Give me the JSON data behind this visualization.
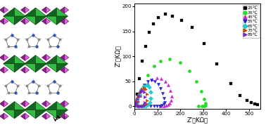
{
  "title": "",
  "xlabel": "Z’（KΩ）",
  "ylabel": "Z″（KΩ）",
  "xlim": [
    0,
    550
  ],
  "ylim": [
    -5,
    205
  ],
  "yticks": [
    0,
    50,
    100,
    150,
    200
  ],
  "xticks": [
    0,
    100,
    200,
    300,
    400,
    500
  ],
  "legend_labels": [
    "25℃",
    "35℃",
    "45℃",
    "55℃",
    "65℃",
    "75℃",
    "85℃"
  ],
  "legend_colors": [
    "black",
    "#22dd22",
    "#cc22cc",
    "#2222cc",
    "#22cccc",
    "#cc4400",
    "#7722cc"
  ],
  "legend_markers": [
    "s",
    "o",
    "^",
    "v",
    "D",
    ">",
    ">"
  ],
  "series_25": {
    "color": "black",
    "marker": "s",
    "x": [
      12,
      22,
      35,
      50,
      65,
      82,
      105,
      135,
      165,
      205,
      250,
      305,
      360,
      420,
      460,
      490,
      510,
      525,
      535
    ],
    "y": [
      25,
      55,
      90,
      120,
      148,
      165,
      178,
      185,
      180,
      172,
      158,
      125,
      85,
      45,
      22,
      12,
      7,
      4,
      3
    ]
  },
  "series_35": {
    "color": "#22dd22",
    "marker": "o",
    "x": [
      12,
      25,
      40,
      60,
      85,
      115,
      155,
      200,
      240,
      270,
      290,
      305,
      310,
      310,
      305,
      295,
      280
    ],
    "y": [
      8,
      22,
      40,
      62,
      80,
      90,
      95,
      88,
      70,
      50,
      30,
      15,
      6,
      2,
      1,
      1,
      1
    ]
  },
  "series_45": {
    "color": "#cc22cc",
    "marker": "^",
    "x": [
      8,
      15,
      25,
      40,
      58,
      78,
      98,
      118,
      135,
      148,
      158,
      162,
      160,
      155,
      148,
      138,
      128,
      115
    ],
    "y": [
      5,
      12,
      22,
      35,
      46,
      54,
      57,
      55,
      50,
      42,
      32,
      20,
      12,
      6,
      3,
      2,
      1,
      1
    ]
  },
  "series_55": {
    "color": "#2222cc",
    "marker": "v",
    "x": [
      5,
      10,
      18,
      28,
      42,
      58,
      74,
      90,
      104,
      115,
      124,
      130,
      132,
      128,
      120,
      110,
      98,
      85,
      72
    ],
    "y": [
      3,
      8,
      18,
      30,
      42,
      50,
      52,
      50,
      44,
      36,
      26,
      16,
      8,
      4,
      2,
      1,
      1,
      1,
      1
    ]
  },
  "series_65": {
    "color": "#22cccc",
    "marker": "D",
    "x": [
      4,
      8,
      14,
      22,
      32,
      44,
      55,
      64,
      70,
      72,
      68,
      60,
      50,
      40,
      30,
      20
    ],
    "y": [
      2,
      6,
      14,
      24,
      34,
      40,
      42,
      38,
      28,
      16,
      7,
      3,
      1,
      1,
      1,
      1
    ]
  },
  "series_75": {
    "color": "#cc4400",
    "marker": ">",
    "x": [
      3,
      6,
      10,
      16,
      24,
      33,
      42,
      50,
      55,
      56,
      52,
      44,
      36,
      27,
      18
    ],
    "y": [
      2,
      4,
      10,
      18,
      27,
      34,
      37,
      34,
      24,
      12,
      5,
      2,
      1,
      1,
      1
    ]
  },
  "series_85": {
    "color": "#7722cc",
    "marker": ">",
    "x": [
      3,
      5,
      8,
      14,
      20,
      28,
      35,
      42,
      46,
      47,
      44,
      38,
      30,
      22,
      15
    ],
    "y": [
      1,
      3,
      8,
      15,
      22,
      29,
      32,
      28,
      18,
      8,
      3,
      1,
      1,
      1,
      1
    ]
  }
}
